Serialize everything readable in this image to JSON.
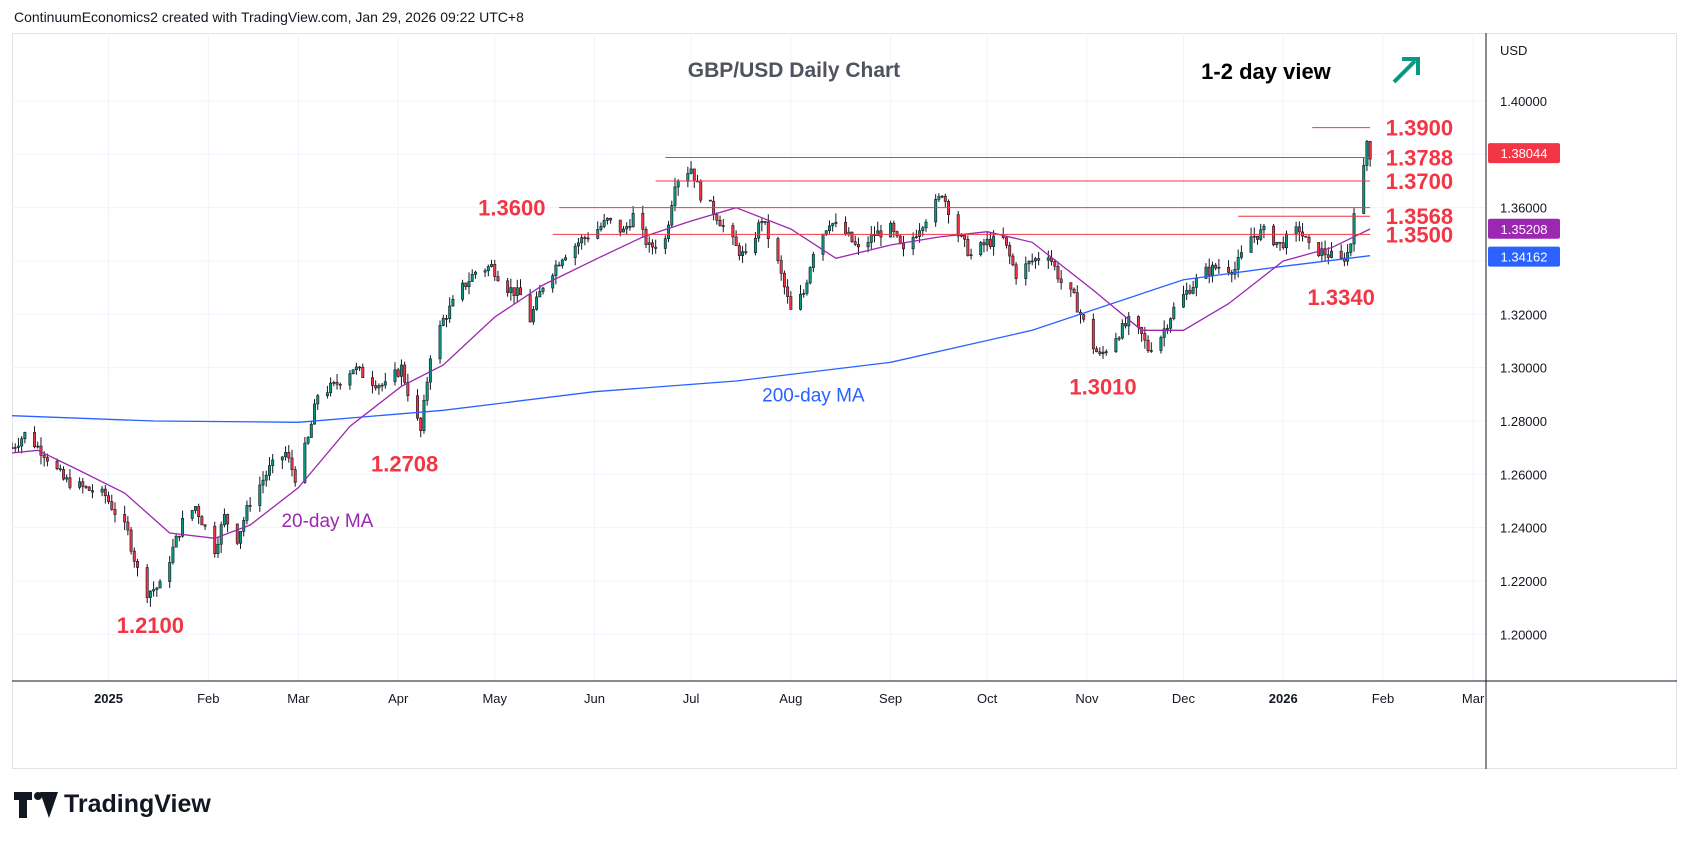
{
  "header": {
    "text": "ContinuumEconomics2 created with TradingView.com, Jan 29, 2026 09:22 UTC+8"
  },
  "brand": {
    "name": "TradingView",
    "logo_icon": "tradingview-logo-icon"
  },
  "colors": {
    "up": "#089981",
    "down": "#f23645",
    "ma20": "#9c27b0",
    "ma200": "#2962ff",
    "levels": "#f23645",
    "grid": "#f0f3fa",
    "text": "#131722",
    "arrow": "#089981"
  },
  "chart_data": {
    "type": "candlestick",
    "title": "GBP/USD Daily Chart",
    "subtitle": "1-2 day view",
    "bias_icon": "arrow-up-right-icon",
    "currency": "USD",
    "ylim": [
      1.1825,
      1.4255
    ],
    "y_ticks": [
      "1.40000",
      "1.38000",
      "1.36000",
      "1.34000",
      "1.32000",
      "1.30000",
      "1.28000",
      "1.26000",
      "1.24000",
      "1.22000",
      "1.20000"
    ],
    "x_start": "2024-12-02",
    "x_end": "2026-03-05",
    "x_ticks": [
      {
        "date": "2025-01-01",
        "label": "2025",
        "bold": true
      },
      {
        "date": "2025-02-01",
        "label": "Feb"
      },
      {
        "date": "2025-03-01",
        "label": "Mar"
      },
      {
        "date": "2025-04-01",
        "label": "Apr"
      },
      {
        "date": "2025-05-01",
        "label": "May"
      },
      {
        "date": "2025-06-01",
        "label": "Jun"
      },
      {
        "date": "2025-07-01",
        "label": "Jul"
      },
      {
        "date": "2025-08-01",
        "label": "Aug"
      },
      {
        "date": "2025-09-01",
        "label": "Sep"
      },
      {
        "date": "2025-10-01",
        "label": "Oct"
      },
      {
        "date": "2025-11-01",
        "label": "Nov"
      },
      {
        "date": "2025-12-01",
        "label": "Dec"
      },
      {
        "date": "2026-01-01",
        "label": "2026",
        "bold": true
      },
      {
        "date": "2026-02-01",
        "label": "Feb"
      },
      {
        "date": "2026-03-01",
        "label": "Mar"
      }
    ],
    "price_path": [
      [
        "2024-12-02",
        1.27
      ],
      [
        "2024-12-06",
        1.275
      ],
      [
        "2024-12-12",
        1.268
      ],
      [
        "2024-12-18",
        1.258
      ],
      [
        "2024-12-24",
        1.255
      ],
      [
        "2024-12-31",
        1.252
      ],
      [
        "2025-01-07",
        1.238
      ],
      [
        "2025-01-10",
        1.224
      ],
      [
        "2025-01-13",
        1.216
      ],
      [
        "2025-01-17",
        1.218
      ],
      [
        "2025-01-21",
        1.232
      ],
      [
        "2025-01-24",
        1.242
      ],
      [
        "2025-01-28",
        1.248
      ],
      [
        "2025-02-03",
        1.232
      ],
      [
        "2025-02-06",
        1.244
      ],
      [
        "2025-02-10",
        1.236
      ],
      [
        "2025-02-14",
        1.25
      ],
      [
        "2025-02-20",
        1.262
      ],
      [
        "2025-02-25",
        1.268
      ],
      [
        "2025-02-28",
        1.259
      ],
      [
        "2025-03-04",
        1.273
      ],
      [
        "2025-03-07",
        1.29
      ],
      [
        "2025-03-12",
        1.293
      ],
      [
        "2025-03-18",
        1.3
      ],
      [
        "2025-03-24",
        1.295
      ],
      [
        "2025-03-28",
        1.293
      ],
      [
        "2025-04-02",
        1.3
      ],
      [
        "2025-04-04",
        1.291
      ],
      [
        "2025-04-08",
        1.276
      ],
      [
        "2025-04-11",
        1.305
      ],
      [
        "2025-04-15",
        1.318
      ],
      [
        "2025-04-21",
        1.33
      ],
      [
        "2025-04-25",
        1.336
      ],
      [
        "2025-04-30",
        1.338
      ],
      [
        "2025-05-05",
        1.33
      ],
      [
        "2025-05-09",
        1.327
      ],
      [
        "2025-05-12",
        1.318
      ],
      [
        "2025-05-16",
        1.331
      ],
      [
        "2025-05-22",
        1.342
      ],
      [
        "2025-05-28",
        1.348
      ],
      [
        "2025-06-02",
        1.352
      ],
      [
        "2025-06-05",
        1.355
      ],
      [
        "2025-06-10",
        1.351
      ],
      [
        "2025-06-13",
        1.357
      ],
      [
        "2025-06-18",
        1.345
      ],
      [
        "2025-06-23",
        1.348
      ],
      [
        "2025-06-26",
        1.37
      ],
      [
        "2025-07-01",
        1.375
      ],
      [
        "2025-07-04",
        1.365
      ],
      [
        "2025-07-09",
        1.357
      ],
      [
        "2025-07-15",
        1.345
      ],
      [
        "2025-07-18",
        1.341
      ],
      [
        "2025-07-23",
        1.356
      ],
      [
        "2025-07-28",
        1.339
      ],
      [
        "2025-08-01",
        1.321
      ],
      [
        "2025-08-05",
        1.328
      ],
      [
        "2025-08-08",
        1.344
      ],
      [
        "2025-08-13",
        1.355
      ],
      [
        "2025-08-19",
        1.349
      ],
      [
        "2025-08-22",
        1.344
      ],
      [
        "2025-08-27",
        1.35
      ],
      [
        "2025-09-01",
        1.352
      ],
      [
        "2025-09-05",
        1.343
      ],
      [
        "2025-09-10",
        1.353
      ],
      [
        "2025-09-16",
        1.363
      ],
      [
        "2025-09-17",
        1.366
      ],
      [
        "2025-09-22",
        1.35
      ],
      [
        "2025-09-26",
        1.342
      ],
      [
        "2025-10-01",
        1.347
      ],
      [
        "2025-10-06",
        1.348
      ],
      [
        "2025-10-10",
        1.335
      ],
      [
        "2025-10-15",
        1.34
      ],
      [
        "2025-10-20",
        1.343
      ],
      [
        "2025-10-24",
        1.332
      ],
      [
        "2025-10-28",
        1.326
      ],
      [
        "2025-11-03",
        1.308
      ],
      [
        "2025-11-05",
        1.304
      ],
      [
        "2025-11-10",
        1.312
      ],
      [
        "2025-11-14",
        1.317
      ],
      [
        "2025-11-18",
        1.312
      ],
      [
        "2025-11-20",
        1.307
      ],
      [
        "2025-11-24",
        1.312
      ],
      [
        "2025-11-28",
        1.322
      ],
      [
        "2025-12-03",
        1.33
      ],
      [
        "2025-12-08",
        1.336
      ],
      [
        "2025-12-12",
        1.338
      ],
      [
        "2025-12-17",
        1.337
      ],
      [
        "2025-12-22",
        1.349
      ],
      [
        "2025-12-26",
        1.351
      ],
      [
        "2025-12-31",
        1.346
      ],
      [
        "2026-01-06",
        1.352
      ],
      [
        "2026-01-09",
        1.345
      ],
      [
        "2026-01-14",
        1.343
      ],
      [
        "2026-01-19",
        1.34
      ],
      [
        "2026-01-21",
        1.343
      ],
      [
        "2026-01-22",
        1.347
      ],
      [
        "2026-01-23",
        1.36
      ],
      [
        "2026-01-26",
        1.374
      ],
      [
        "2026-01-27",
        1.385
      ],
      [
        "2026-01-28",
        1.38
      ]
    ],
    "ma20": [
      [
        "2024-12-02",
        1.268
      ],
      [
        "2024-12-10",
        1.269
      ],
      [
        "2024-12-22",
        1.262
      ],
      [
        "2025-01-06",
        1.253
      ],
      [
        "2025-01-20",
        1.238
      ],
      [
        "2025-02-03",
        1.236
      ],
      [
        "2025-02-14",
        1.241
      ],
      [
        "2025-03-01",
        1.255
      ],
      [
        "2025-03-17",
        1.278
      ],
      [
        "2025-04-02",
        1.293
      ],
      [
        "2025-04-15",
        1.301
      ],
      [
        "2025-05-01",
        1.319
      ],
      [
        "2025-05-16",
        1.331
      ],
      [
        "2025-06-02",
        1.341
      ],
      [
        "2025-06-16",
        1.349
      ],
      [
        "2025-07-01",
        1.355
      ],
      [
        "2025-07-15",
        1.36
      ],
      [
        "2025-08-01",
        1.352
      ],
      [
        "2025-08-15",
        1.341
      ],
      [
        "2025-09-01",
        1.346
      ],
      [
        "2025-09-16",
        1.349
      ],
      [
        "2025-10-01",
        1.351
      ],
      [
        "2025-10-15",
        1.347
      ],
      [
        "2025-11-03",
        1.329
      ],
      [
        "2025-11-18",
        1.314
      ],
      [
        "2025-12-01",
        1.314
      ],
      [
        "2025-12-15",
        1.324
      ],
      [
        "2026-01-01",
        1.34
      ],
      [
        "2026-01-16",
        1.345
      ],
      [
        "2026-01-28",
        1.352
      ]
    ],
    "ma200": [
      [
        "2024-12-02",
        1.282
      ],
      [
        "2025-01-15",
        1.28
      ],
      [
        "2025-03-01",
        1.2795
      ],
      [
        "2025-04-15",
        1.284
      ],
      [
        "2025-06-01",
        1.291
      ],
      [
        "2025-07-15",
        1.295
      ],
      [
        "2025-09-01",
        1.302
      ],
      [
        "2025-10-15",
        1.314
      ],
      [
        "2025-12-01",
        1.333
      ],
      [
        "2026-01-01",
        1.338
      ],
      [
        "2026-01-28",
        1.342
      ]
    ],
    "level_lines": [
      {
        "price": 1.39,
        "from": "2026-01-10",
        "to": "2026-01-28"
      },
      {
        "price": 1.3788,
        "from": "2025-06-23",
        "to": "2026-01-28"
      },
      {
        "price": 1.37,
        "from": "2025-06-20",
        "to": "2026-01-28"
      },
      {
        "price": 1.36,
        "from": "2025-05-21",
        "to": "2026-01-28"
      },
      {
        "price": 1.3568,
        "from": "2025-12-18",
        "to": "2026-01-28"
      },
      {
        "price": 1.35,
        "from": "2025-05-19",
        "to": "2026-01-28"
      }
    ],
    "annotations": [
      {
        "text": "1.3900",
        "date": "2026-01-31",
        "price": 1.39,
        "anchor": "start"
      },
      {
        "text": "1.3788",
        "date": "2026-01-31",
        "price": 1.3788,
        "anchor": "start"
      },
      {
        "text": "1.3700",
        "date": "2026-01-31",
        "price": 1.37,
        "anchor": "start"
      },
      {
        "text": "1.3568",
        "date": "2026-01-31",
        "price": 1.3568,
        "anchor": "start"
      },
      {
        "text": "1.3500",
        "date": "2026-01-31",
        "price": 1.35,
        "anchor": "start"
      },
      {
        "text": "1.3600",
        "date": "2025-05-18",
        "price": 1.36,
        "anchor": "end"
      },
      {
        "text": "1.2708",
        "date": "2025-04-03",
        "price": 1.264,
        "anchor": "middle"
      },
      {
        "text": "1.2100",
        "date": "2025-01-14",
        "price": 1.2035,
        "anchor": "middle"
      },
      {
        "text": "1.3010",
        "date": "2025-11-06",
        "price": 1.293,
        "anchor": "middle"
      },
      {
        "text": "1.3340",
        "date": "2026-01-19",
        "price": 1.3265,
        "anchor": "middle"
      }
    ],
    "ma_labels": [
      {
        "text": "200-day MA",
        "date": "2025-08-08",
        "price": 1.2895,
        "series": "ma200"
      },
      {
        "text": "20-day MA",
        "date": "2025-03-10",
        "price": 1.2425,
        "series": "ma20"
      }
    ],
    "price_tags": [
      {
        "value": "1.38044",
        "price": 1.38044,
        "color": "#f23645"
      },
      {
        "value": "1.35208",
        "price": 1.35208,
        "color": "#9c27b0"
      },
      {
        "value": "1.34162",
        "price": 1.34162,
        "color": "#2962ff"
      }
    ]
  }
}
